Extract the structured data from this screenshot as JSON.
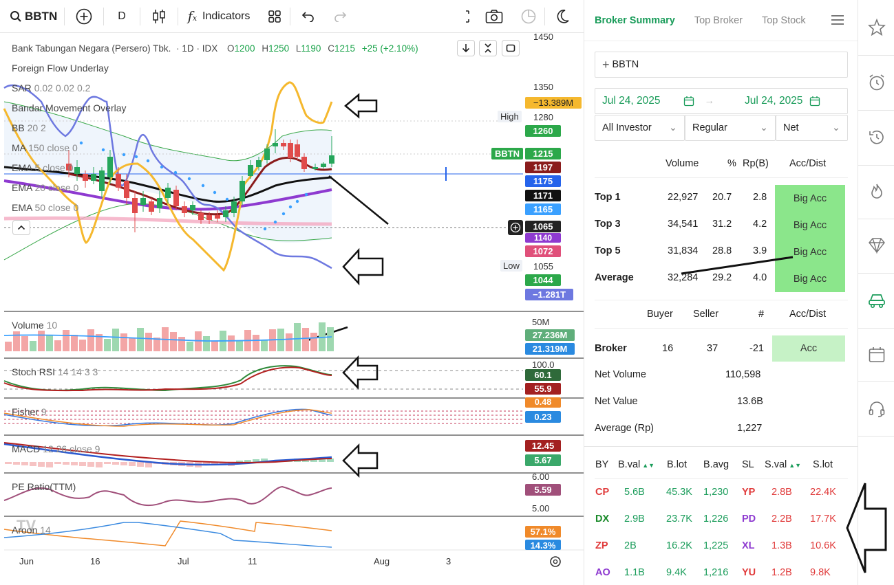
{
  "toolbar": {
    "symbol": "BBTN",
    "interval": "D",
    "indicators_label": "Indicators"
  },
  "legend": {
    "instrument": "Bank Tabungan Negara (Persero) Tbk.",
    "timeframe": "1D",
    "exchange": "IDX",
    "o_label": "O",
    "o_value": "1200",
    "h_label": "H",
    "h_value": "1250",
    "l_label": "L",
    "l_value": "1190",
    "c_label": "C",
    "c_value": "1215",
    "change": "+25 (+2.10%)",
    "overlays": [
      {
        "name": "Foreign Flow Underlay",
        "params": ""
      },
      {
        "name": "SAR",
        "params": "0.02 0.02 0.2"
      },
      {
        "name": "Bandar Movement Overlay",
        "params": ""
      },
      {
        "name": "BB",
        "params": "20 2"
      },
      {
        "name": "MA",
        "params": "150 close 0"
      },
      {
        "name": "EMA",
        "params": "5 close 0"
      },
      {
        "name": "EMA",
        "params": "20 close 0"
      },
      {
        "name": "EMA",
        "params": "50 close 0"
      }
    ],
    "volume": "Volume",
    "volume_params": "10",
    "stoch": "Stoch RSI",
    "stoch_params": "14 14 3 3",
    "fisher": "Fisher",
    "fisher_params": "9",
    "macd": "MACD",
    "macd_params": "12 26 close 9",
    "pe": "PE Ratio(TTM)",
    "aroon": "Aroon",
    "aroon_params": "14"
  },
  "price_axis": {
    "p1450": "1450",
    "p1350": "1350",
    "bandar": "−13.389M",
    "high_label": "High",
    "high": "1280",
    "p1260": "1260",
    "sym_tag": "BBTN",
    "last": "1215",
    "p1197": "1197",
    "p1175": "1175",
    "p1171": "1171",
    "p1165": "1165",
    "crosshair": "1065",
    "p1140": "1140",
    "p1072": "1072",
    "low_label": "Low",
    "low": "1055",
    "p1044": "1044",
    "foreign": "−1.281T",
    "vol_max": "50M",
    "vol1": "27.236M",
    "vol2": "21.319M",
    "stoch_max": "100.0",
    "stoch1": "60.1",
    "stoch2": "55.9",
    "fisher1": "0.48",
    "fisher2": "0.23",
    "macd1": "12.45",
    "macd2": "5.67",
    "pe_top": "6.00",
    "pe_val": "5.59",
    "pe_bot": "5.00",
    "aroon1": "57.1%",
    "aroon2": "14.3%"
  },
  "time_axis": [
    "Jun",
    "16",
    "Jul",
    "11",
    "Aug",
    "3"
  ],
  "panel": {
    "tabs": [
      "Broker Summary",
      "Top Broker",
      "Top Stock"
    ],
    "stock": "BBTN",
    "date_from": "Jul 24, 2025",
    "date_to": "Jul 24, 2025",
    "filter_investor": "All Investor",
    "filter_type": "Regular",
    "filter_mode": "Net",
    "summary_headers": [
      "Volume",
      "%",
      "Rp(B)",
      "Acc/Dist"
    ],
    "summary_rows": [
      {
        "label": "Top 1",
        "volume": "22,927",
        "pct": "20.7",
        "rp": "2.8",
        "acc": "Big Acc"
      },
      {
        "label": "Top 3",
        "volume": "34,541",
        "pct": "31.2",
        "rp": "4.2",
        "acc": "Big Acc"
      },
      {
        "label": "Top 5",
        "volume": "31,834",
        "pct": "28.8",
        "rp": "3.9",
        "acc": "Big Acc"
      },
      {
        "label": "Average",
        "volume": "32,284",
        "pct": "29.2",
        "rp": "4.0",
        "acc": "Big Acc"
      }
    ],
    "broker_headers": [
      "Buyer",
      "Seller",
      "#",
      "Acc/Dist"
    ],
    "broker_row": {
      "label": "Broker",
      "buyer": "16",
      "seller": "37",
      "net": "-21",
      "acc": "Acc"
    },
    "net_volume_label": "Net Volume",
    "net_volume": "110,598",
    "net_value_label": "Net Value",
    "net_value": "13.6B",
    "average_label": "Average (Rp)",
    "average": "1,227",
    "trade_headers": [
      "BY",
      "B.val",
      "B.lot",
      "B.avg",
      "SL",
      "S.val",
      "S.lot"
    ],
    "trades": [
      {
        "by": "CP",
        "bval": "5.6B",
        "blot": "45.3K",
        "bavg": "1,230",
        "sl": "YP",
        "sval": "2.8B",
        "slot": "22.4K",
        "by_color": "#e03a3a",
        "sl_color": "#e03a3a"
      },
      {
        "by": "DX",
        "bval": "2.9B",
        "blot": "23.7K",
        "bavg": "1,226",
        "sl": "PD",
        "sval": "2.2B",
        "slot": "17.7K",
        "by_color": "#1a8a2a",
        "sl_color": "#8e3ad0"
      },
      {
        "by": "ZP",
        "bval": "2B",
        "blot": "16.2K",
        "bavg": "1,225",
        "sl": "XL",
        "sval": "1.3B",
        "slot": "10.6K",
        "by_color": "#e03a3a",
        "sl_color": "#8e3ad0"
      },
      {
        "by": "AO",
        "bval": "1.1B",
        "blot": "9.4K",
        "bavg": "1,216",
        "sl": "YU",
        "sval": "1.2B",
        "slot": "9.8K",
        "by_color": "#8e3ad0",
        "sl_color": "#e03a3a"
      }
    ]
  },
  "colors": {
    "accent": "#1a9c5a",
    "up": "#26a65b",
    "down": "#e04b4b",
    "bandar": "#f5b82e",
    "sar": "#6d78e0"
  }
}
